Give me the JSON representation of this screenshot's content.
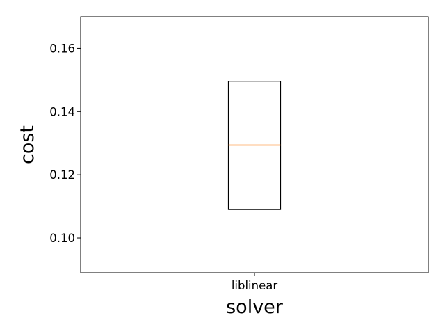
{
  "chart_data": {
    "type": "boxplot",
    "title": "",
    "xlabel": "solver",
    "ylabel": "cost",
    "categories": [
      "liblinear"
    ],
    "boxes": [
      {
        "category": "liblinear",
        "q1": 0.109,
        "median": 0.1294,
        "q3": 0.1496,
        "whisker_low": 0.109,
        "whisker_high": 0.1496
      }
    ],
    "ylim": [
      0.089,
      0.17
    ],
    "yticks": [
      0.1,
      0.12,
      0.14,
      0.16
    ],
    "ytick_labels": [
      "0.10",
      "0.12",
      "0.14",
      "0.16"
    ],
    "grid": false,
    "colors": {
      "box": "#000000",
      "median": "#ff7f0e",
      "axes": "#000000"
    }
  }
}
